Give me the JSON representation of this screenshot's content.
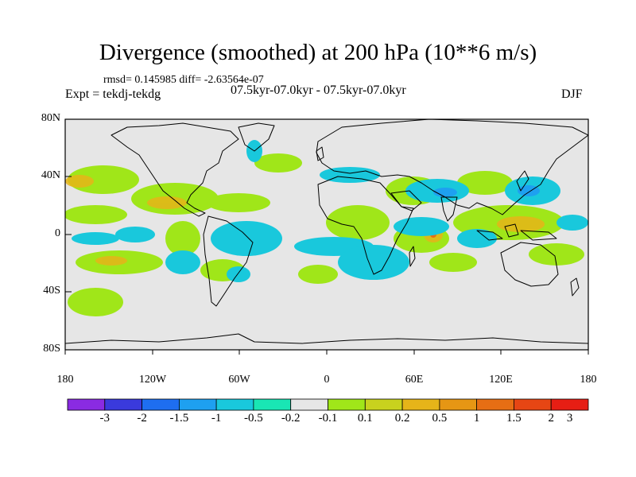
{
  "title": "Divergence (smoothed) at 200 hPa (10**6 m/s)",
  "stats": "rmsd= 0.145985 diff= -2.63564e-07",
  "expt": "Expt = tekdj-tekdg",
  "period": "07.5kyr-07.0kyr - 07.5kyr-07.0kyr",
  "season": "DJF",
  "lat_labels": [
    "80N",
    "40N",
    "0",
    "40S",
    "80S"
  ],
  "lon_labels": [
    "180",
    "120W",
    "60W",
    "0",
    "60E",
    "120E",
    "180"
  ],
  "colorbar": {
    "colors": [
      "#8a2be2",
      "#3a3adc",
      "#1e6ef0",
      "#1ea0f0",
      "#19c8dc",
      "#19e6b4",
      "#e6e6e6",
      "#a0e619",
      "#c8d21e",
      "#e6b419",
      "#e69614",
      "#e66e14",
      "#e64614",
      "#e61e14"
    ],
    "labels": [
      "-3",
      "-2",
      "-1.5",
      "-1",
      "-0.5",
      "-0.2",
      "-0.1",
      "0.1",
      "0.2",
      "0.5",
      "1",
      "1.5",
      "2",
      "3"
    ]
  }
}
